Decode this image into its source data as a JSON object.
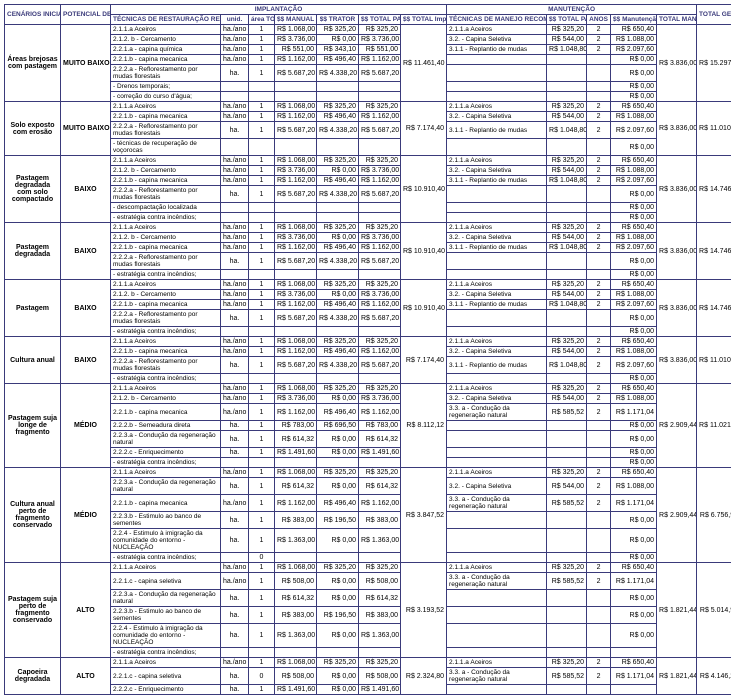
{
  "headers": {
    "scen": "CENÁRIOS INICIAIS",
    "pot": "POTENCIAL DE AUTO-RECUPERAÇÃO",
    "imp": "IMPLANTAÇÃO",
    "man": "MANUTENÇÃO",
    "tot": "TOTAL GERAL",
    "tec_rest": "TÉCNICAS DE RESTAURAÇÃO RECOMENDADAS",
    "unid": "unid.",
    "area": "área TOTAL (HA)",
    "man_ss": "$$ MANUAL",
    "trat": "$$ TRATOR",
    "parc": "$$ TOTAL PARCIAL",
    "totimp": "$$ TOTAL Implantação",
    "tec_man": "TÉCNICAS DE MANEJO RECOMENDADAS",
    "parc2": "$$ TOTAL PARCIAL",
    "anos": "ANOS",
    "man_tot": "$$ Manutenção TOTAL*ANOS",
    "totman": "TOTAL MANEJO"
  },
  "scenarios": [
    {
      "scen": "Áreas brejosas com pastagem",
      "pot": "MUITO BAIXO",
      "totimp": "R$ 11.461,40",
      "totman": "R$ 3.836,00",
      "tot": "R$ 15.297,40",
      "rows": [
        {
          "t": "2.1.1.a Aceiros",
          "u": "ha./ano",
          "a": "1",
          "m": "R$ 1.068,00",
          "tr": "R$ 325,20",
          "p": "R$ 325,20",
          "mt": "2.1.1.a Aceiros",
          "mp": "R$ 325,20",
          "an": "2",
          "mtot": "R$ 650,40"
        },
        {
          "t": "2.1.2. b - Cercamento",
          "u": "ha./ano",
          "a": "1",
          "m": "R$ 3.736,00",
          "tr": "R$ 0,00",
          "p": "R$ 3.736,00",
          "mt": "3.2. - Capina Seletiva",
          "mp": "R$ 544,00",
          "an": "2",
          "mtot": "R$ 1.088,00"
        },
        {
          "t": "2.2.1.a - capina química",
          "u": "ha./ano",
          "a": "1",
          "m": "R$ 551,00",
          "tr": "R$ 343,10",
          "p": "R$ 551,00",
          "mt": "3.1.1 - Replantio de mudas",
          "mp": "R$ 1.048,80",
          "an": "2",
          "mtot": "R$ 2.097,60"
        },
        {
          "t": "2.2.1.b - capina mecanica",
          "u": "ha./ano",
          "a": "1",
          "m": "R$ 1.162,00",
          "tr": "R$ 496,40",
          "p": "R$ 1.162,00",
          "mt": "",
          "mp": "",
          "an": "",
          "mtot": "R$ 0,00"
        },
        {
          "t": "2.2.2.a - Reflorestamento por mudas florestais",
          "u": "ha.",
          "a": "1",
          "m": "R$ 5.687,20",
          "tr": "R$ 4.338,20",
          "p": "R$ 5.687,20",
          "mt": "",
          "mp": "",
          "an": "",
          "mtot": "R$ 0,00"
        },
        {
          "t": "- Drenos temporais;",
          "u": "",
          "a": "",
          "m": "",
          "tr": "",
          "p": "",
          "mt": "",
          "mp": "",
          "an": "",
          "mtot": "R$ 0,00"
        },
        {
          "t": "- correção do curso d'água;",
          "u": "",
          "a": "",
          "m": "",
          "tr": "",
          "p": "",
          "mt": "",
          "mp": "",
          "an": "",
          "mtot": "R$ 0,00"
        }
      ]
    },
    {
      "scen": "Solo exposto com erosão",
      "pot": "MUITO BAIXO",
      "totimp": "R$ 7.174,40",
      "totman": "R$ 3.836,00",
      "tot": "R$ 11.010,40",
      "rows": [
        {
          "t": "2.1.1.a Aceiros",
          "u": "ha./ano",
          "a": "1",
          "m": "R$ 1.068,00",
          "tr": "R$ 325,20",
          "p": "R$ 325,20",
          "mt": "2.1.1.a Aceiros",
          "mp": "R$ 325,20",
          "an": "2",
          "mtot": "R$ 650,40"
        },
        {
          "t": "2.2.1.b - capina mecanica",
          "u": "ha./ano",
          "a": "1",
          "m": "R$ 1.162,00",
          "tr": "R$ 496,40",
          "p": "R$ 1.162,00",
          "mt": "3.2. - Capina Seletiva",
          "mp": "R$ 544,00",
          "an": "2",
          "mtot": "R$ 1.088,00"
        },
        {
          "t": "2.2.2.a - Reflorestamento por mudas florestais",
          "u": "ha.",
          "a": "1",
          "m": "R$ 5.687,20",
          "tr": "R$ 4.338,20",
          "p": "R$ 5.687,20",
          "mt": "3.1.1 - Replantio de mudas",
          "mp": "R$ 1.048,80",
          "an": "2",
          "mtot": "R$ 2.097,60"
        },
        {
          "t": "- técnicas de recuperação de voçorocas",
          "u": "",
          "a": "",
          "m": "",
          "tr": "",
          "p": "",
          "mt": "",
          "mp": "",
          "an": "",
          "mtot": "R$ 0,00"
        }
      ]
    },
    {
      "scen": "Pastagem degradada com solo compactado",
      "pot": "BAIXO",
      "totimp": "R$ 10.910,40",
      "totman": "R$ 3.836,00",
      "tot": "R$ 14.746,40",
      "rows": [
        {
          "t": "2.1.1.a Aceiros",
          "u": "ha./ano",
          "a": "1",
          "m": "R$ 1.068,00",
          "tr": "R$ 325,20",
          "p": "R$ 325,20",
          "mt": "2.1.1.a Aceiros",
          "mp": "R$ 325,20",
          "an": "2",
          "mtot": "R$ 650,40"
        },
        {
          "t": "2.1.2. b - Cercamento",
          "u": "ha./ano",
          "a": "1",
          "m": "R$ 3.736,00",
          "tr": "R$ 0,00",
          "p": "R$ 3.736,00",
          "mt": "3.2. - Capina Seletiva",
          "mp": "R$ 544,00",
          "an": "2",
          "mtot": "R$ 1.088,00"
        },
        {
          "t": "2.2.1.b - capina mecanica",
          "u": "ha./ano",
          "a": "1",
          "m": "R$ 1.162,00",
          "tr": "R$ 496,40",
          "p": "R$ 1.162,00",
          "mt": "3.1.1 - Replantio de mudas",
          "mp": "R$ 1.048,80",
          "an": "2",
          "mtot": "R$ 2.097,60"
        },
        {
          "t": "2.2.2.a - Reflorestamento por mudas florestais",
          "u": "ha.",
          "a": "1",
          "m": "R$ 5.687,20",
          "tr": "R$ 4.338,20",
          "p": "R$ 5.687,20",
          "mt": "",
          "mp": "",
          "an": "",
          "mtot": "R$ 0,00"
        },
        {
          "t": "- descompactação localizada",
          "u": "",
          "a": "",
          "m": "",
          "tr": "",
          "p": "",
          "mt": "",
          "mp": "",
          "an": "",
          "mtot": "R$ 0,00"
        },
        {
          "t": "- estratégia contra incêndios;",
          "u": "",
          "a": "",
          "m": "",
          "tr": "",
          "p": "",
          "mt": "",
          "mp": "",
          "an": "",
          "mtot": "R$ 0,00"
        }
      ]
    },
    {
      "scen": "Pastagem degradada",
      "pot": "BAIXO",
      "totimp": "R$ 10.910,40",
      "totman": "R$ 3.836,00",
      "tot": "R$ 14.746,40",
      "rows": [
        {
          "t": "2.1.1.a Aceiros",
          "u": "ha./ano",
          "a": "1",
          "m": "R$ 1.068,00",
          "tr": "R$ 325,20",
          "p": "R$ 325,20",
          "mt": "2.1.1.a Aceiros",
          "mp": "R$ 325,20",
          "an": "2",
          "mtot": "R$ 650,40"
        },
        {
          "t": "2.1.2. b - Cercamento",
          "u": "ha./ano",
          "a": "1",
          "m": "R$ 3.736,00",
          "tr": "R$ 0,00",
          "p": "R$ 3.736,00",
          "mt": "3.2. - Capina Seletiva",
          "mp": "R$ 544,00",
          "an": "2",
          "mtot": "R$ 1.088,00"
        },
        {
          "t": "2.2.1.b - capina mecanica",
          "u": "ha./ano",
          "a": "1",
          "m": "R$ 1.162,00",
          "tr": "R$ 496,40",
          "p": "R$ 1.162,00",
          "mt": "3.1.1 - Replantio de mudas",
          "mp": "R$ 1.048,80",
          "an": "2",
          "mtot": "R$ 2.097,60"
        },
        {
          "t": "2.2.2.a - Reflorestamento por mudas florestais",
          "u": "ha.",
          "a": "1",
          "m": "R$ 5.687,20",
          "tr": "R$ 4.338,20",
          "p": "R$ 5.687,20",
          "mt": "",
          "mp": "",
          "an": "",
          "mtot": "R$ 0,00"
        },
        {
          "t": "- estratégia contra incêndios;",
          "u": "",
          "a": "",
          "m": "",
          "tr": "",
          "p": "",
          "mt": "",
          "mp": "",
          "an": "",
          "mtot": "R$ 0,00"
        }
      ]
    },
    {
      "scen": "Pastagem",
      "pot": "BAIXO",
      "totimp": "R$ 10.910,40",
      "totman": "R$ 3.836,00",
      "tot": "R$ 14.746,40",
      "rows": [
        {
          "t": "2.1.1.a Aceiros",
          "u": "ha./ano",
          "a": "1",
          "m": "R$ 1.068,00",
          "tr": "R$ 325,20",
          "p": "R$ 325,20",
          "mt": "2.1.1.a Aceiros",
          "mp": "R$ 325,20",
          "an": "2",
          "mtot": "R$ 650,40"
        },
        {
          "t": "2.1.2. b - Cercamento",
          "u": "ha./ano",
          "a": "1",
          "m": "R$ 3.736,00",
          "tr": "R$ 0,00",
          "p": "R$ 3.736,00",
          "mt": "3.2. - Capina Seletiva",
          "mp": "R$ 544,00",
          "an": "2",
          "mtot": "R$ 1.088,00"
        },
        {
          "t": "2.2.1.b - capina mecanica",
          "u": "ha./ano",
          "a": "1",
          "m": "R$ 1.162,00",
          "tr": "R$ 496,40",
          "p": "R$ 1.162,00",
          "mt": "3.1.1 - Replantio de mudas",
          "mp": "R$ 1.048,80",
          "an": "2",
          "mtot": "R$ 2.097,60"
        },
        {
          "t": "2.2.2.a - Reflorestamento por mudas florestais",
          "u": "ha.",
          "a": "1",
          "m": "R$ 5.687,20",
          "tr": "R$ 4.338,20",
          "p": "R$ 5.687,20",
          "mt": "",
          "mp": "",
          "an": "",
          "mtot": "R$ 0,00"
        },
        {
          "t": "- estratégia contra incêndios;",
          "u": "",
          "a": "",
          "m": "",
          "tr": "",
          "p": "",
          "mt": "",
          "mp": "",
          "an": "",
          "mtot": "R$ 0,00"
        }
      ]
    },
    {
      "scen": "Cultura anual",
      "pot": "BAIXO",
      "totimp": "R$ 7.174,40",
      "totman": "R$ 3.836,00",
      "tot": "R$ 11.010,40",
      "rows": [
        {
          "t": "2.1.1.a Aceiros",
          "u": "ha./ano",
          "a": "1",
          "m": "R$ 1.068,00",
          "tr": "R$ 325,20",
          "p": "R$ 325,20",
          "mt": "2.1.1.a Aceiros",
          "mp": "R$ 325,20",
          "an": "2",
          "mtot": "R$ 650,40"
        },
        {
          "t": "2.2.1.b - capina mecanica",
          "u": "ha./ano",
          "a": "1",
          "m": "R$ 1.162,00",
          "tr": "R$ 496,40",
          "p": "R$ 1.162,00",
          "mt": "3.2. - Capina Seletiva",
          "mp": "R$ 544,00",
          "an": "2",
          "mtot": "R$ 1.088,00"
        },
        {
          "t": "2.2.2.a - Reflorestamento por mudas florestais",
          "u": "ha.",
          "a": "1",
          "m": "R$ 5.687,20",
          "tr": "R$ 4.338,20",
          "p": "R$ 5.687,20",
          "mt": "3.1.1 - Replantio de mudas",
          "mp": "R$ 1.048,80",
          "an": "2",
          "mtot": "R$ 2.097,60"
        },
        {
          "t": "- estratégia contra incêndios;",
          "u": "",
          "a": "",
          "m": "",
          "tr": "",
          "p": "",
          "mt": "",
          "mp": "",
          "an": "",
          "mtot": "R$ 0,00"
        }
      ]
    },
    {
      "scen": "Pastagem suja longe de fragmento",
      "pot": "MÉDIO",
      "totimp": "R$ 8.112,12",
      "totman": "R$ 2.909,44",
      "tot": "R$ 11.021,56",
      "rows": [
        {
          "t": "2.1.1.a Aceiros",
          "u": "ha./ano",
          "a": "1",
          "m": "R$ 1.068,00",
          "tr": "R$ 325,20",
          "p": "R$ 325,20",
          "mt": "2.1.1.a Aceiros",
          "mp": "R$ 325,20",
          "an": "2",
          "mtot": "R$ 650,40"
        },
        {
          "t": "2.1.2. b - Cercamento",
          "u": "ha./ano",
          "a": "1",
          "m": "R$ 3.736,00",
          "tr": "R$ 0,00",
          "p": "R$ 3.736,00",
          "mt": "3.2. - Capina Seletiva",
          "mp": "R$ 544,00",
          "an": "2",
          "mtot": "R$ 1.088,00"
        },
        {
          "t": "2.2.1.b - capina mecanica",
          "u": "ha./ano",
          "a": "1",
          "m": "R$ 1.162,00",
          "tr": "R$ 496,40",
          "p": "R$ 1.162,00",
          "mt": "3.3. a - Condução da regeneração natural",
          "mp": "R$ 585,52",
          "an": "2",
          "mtot": "R$ 1.171,04"
        },
        {
          "t": "2.2.2.b - Semeadura direta",
          "u": "ha.",
          "a": "1",
          "m": "R$ 783,00",
          "tr": "R$ 696,50",
          "p": "R$ 783,00",
          "mt": "",
          "mp": "",
          "an": "",
          "mtot": "R$ 0,00"
        },
        {
          "t": "2.2.3.a - Condução da regeneração natural",
          "u": "ha.",
          "a": "1",
          "m": "R$ 614,32",
          "tr": "R$ 0,00",
          "p": "R$ 614,32",
          "mt": "",
          "mp": "",
          "an": "",
          "mtot": "R$ 0,00"
        },
        {
          "t": "2.2.2.c - Enriquecimento",
          "u": "ha.",
          "a": "1",
          "m": "R$ 1.491,60",
          "tr": "R$ 0,00",
          "p": "R$ 1.491,60",
          "mt": "",
          "mp": "",
          "an": "",
          "mtot": "R$ 0,00"
        },
        {
          "t": "- estratégia contra incêndios;",
          "u": "",
          "a": "",
          "m": "",
          "tr": "",
          "p": "",
          "mt": "",
          "mp": "",
          "an": "",
          "mtot": "R$ 0,00"
        }
      ]
    },
    {
      "scen": "Cultura anual perto de fragmento conservado",
      "pot": "MÉDIO",
      "totimp": "R$ 3.847,52",
      "totman": "R$ 2.909,44",
      "tot": "R$ 6.756,96",
      "rows": [
        {
          "t": "2.1.1.a Aceiros",
          "u": "ha./ano",
          "a": "1",
          "m": "R$ 1.068,00",
          "tr": "R$ 325,20",
          "p": "R$ 325,20",
          "mt": "2.1.1.a Aceiros",
          "mp": "R$ 325,20",
          "an": "2",
          "mtot": "R$ 650,40"
        },
        {
          "t": "2.2.3.a - Condução da regeneração natural",
          "u": "ha.",
          "a": "1",
          "m": "R$ 614,32",
          "tr": "R$ 0,00",
          "p": "R$ 614,32",
          "mt": "3.2. - Capina Seletiva",
          "mp": "R$ 544,00",
          "an": "2",
          "mtot": "R$ 1.088,00"
        },
        {
          "t": "2.2.1.b - capina mecanica",
          "u": "ha./ano",
          "a": "1",
          "m": "R$ 1.162,00",
          "tr": "R$ 496,40",
          "p": "R$ 1.162,00",
          "mt": "3.3. a - Condução da regeneração natural",
          "mp": "R$ 585,52",
          "an": "2",
          "mtot": "R$ 1.171,04"
        },
        {
          "t": "2.2.3.b - Estimulo ao banco de sementes",
          "u": "ha.",
          "a": "1",
          "m": "R$ 383,00",
          "tr": "R$ 196,50",
          "p": "R$ 383,00",
          "mt": "",
          "mp": "",
          "an": "",
          "mtot": "R$ 0,00"
        },
        {
          "t": "2.2.4 - Estimulo à imigração da comunidade do entorno - NUCLEAÇÃO",
          "u": "ha.",
          "a": "1",
          "m": "R$ 1.363,00",
          "tr": "R$ 0,00",
          "p": "R$ 1.363,00",
          "mt": "",
          "mp": "",
          "an": "",
          "mtot": "R$ 0,00"
        },
        {
          "t": "- estratégia contra incêndios;",
          "u": "",
          "a": "0",
          "m": "",
          "tr": "",
          "p": "",
          "mt": "",
          "mp": "",
          "an": "",
          "mtot": "R$ 0,00"
        }
      ]
    },
    {
      "scen": "Pastagem suja perto de fragmento conservado",
      "pot": "ALTO",
      "totimp": "R$ 3.193,52",
      "totman": "R$ 1.821,44",
      "tot": "R$ 5.014,96",
      "rows": [
        {
          "t": "2.1.1.a Aceiros",
          "u": "ha./ano",
          "a": "1",
          "m": "R$ 1.068,00",
          "tr": "R$ 325,20",
          "p": "R$ 325,20",
          "mt": "2.1.1.a Aceiros",
          "mp": "R$ 325,20",
          "an": "2",
          "mtot": "R$ 650,40"
        },
        {
          "t": "2.2.1.c - capina seletiva",
          "u": "ha./ano",
          "a": "1",
          "m": "R$ 508,00",
          "tr": "R$ 0,00",
          "p": "R$ 508,00",
          "mt": "3.3. a - Condução da regeneração natural",
          "mp": "R$ 585,52",
          "an": "2",
          "mtot": "R$ 1.171,04"
        },
        {
          "t": "2.2.3.a - Condução da regeneração natural",
          "u": "ha.",
          "a": "1",
          "m": "R$ 614,32",
          "tr": "R$ 0,00",
          "p": "R$ 614,32",
          "mt": "",
          "mp": "",
          "an": "",
          "mtot": "R$ 0,00"
        },
        {
          "t": "2.2.3.b - Estimulo ao banco de sementes",
          "u": "ha.",
          "a": "1",
          "m": "R$ 383,00",
          "tr": "R$ 196,50",
          "p": "R$ 383,00",
          "mt": "",
          "mp": "",
          "an": "",
          "mtot": "R$ 0,00"
        },
        {
          "t": "2.2.4 - Estimulo à imigração da comunidade do entorno - NUCLEAÇÃO",
          "u": "ha.",
          "a": "1",
          "m": "R$ 1.363,00",
          "tr": "R$ 0,00",
          "p": "R$ 1.363,00",
          "mt": "",
          "mp": "",
          "an": "",
          "mtot": "R$ 0,00"
        },
        {
          "t": "- estratégia contra incêndios;",
          "u": "",
          "a": "",
          "m": "",
          "tr": "",
          "p": "",
          "mt": "",
          "mp": "",
          "an": "",
          "mtot": ""
        }
      ]
    },
    {
      "scen": "Capoeira degradada",
      "pot": "ALTO",
      "totimp": "R$ 2.324,80",
      "totman": "R$ 1.821,44",
      "tot": "R$ 4.146,24",
      "rows": [
        {
          "t": "2.1.1.a Aceiros",
          "u": "ha./ano",
          "a": "1",
          "m": "R$ 1.068,00",
          "tr": "R$ 325,20",
          "p": "R$ 325,20",
          "mt": "2.1.1.a Aceiros",
          "mp": "R$ 325,20",
          "an": "2",
          "mtot": "R$ 650,40"
        },
        {
          "t": "2.2.1.c - capina seletiva",
          "u": "ha.",
          "a": "0",
          "m": "R$ 508,00",
          "tr": "R$ 0,00",
          "p": "R$ 508,00",
          "mt": "3.3. a - Condução da regeneração natural",
          "mp": "R$ 585,52",
          "an": "2",
          "mtot": "R$ 1.171,04"
        },
        {
          "t": "2.2.2.c - Enriquecimento",
          "u": "ha.",
          "a": "1",
          "m": "R$ 1.491,60",
          "tr": "R$ 0,00",
          "p": "R$ 1.491,60",
          "mt": "",
          "mp": "",
          "an": "",
          "mtot": ""
        }
      ]
    }
  ]
}
